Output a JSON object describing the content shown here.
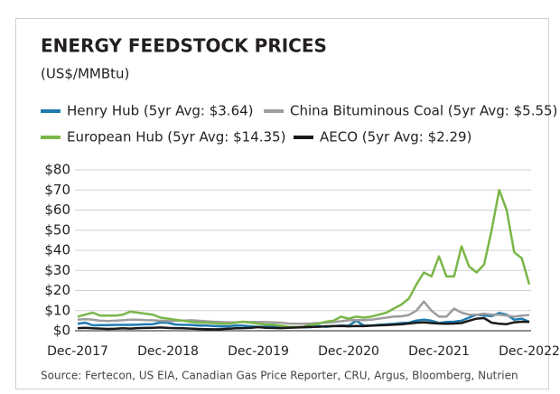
{
  "chart_data": {
    "type": "line",
    "title": "ENERGY FEEDSTOCK PRICES",
    "subtitle": "(US$/MMBtu)",
    "source": "Source: Fertecon, US EIA, Canadian Gas Price Reporter, CRU, Argus, Bloomberg, Nutrien",
    "categories": [
      "Dec-2017",
      null,
      null,
      null,
      null,
      null,
      null,
      null,
      null,
      null,
      null,
      null,
      "Dec-2018",
      null,
      null,
      null,
      null,
      null,
      null,
      null,
      null,
      null,
      null,
      null,
      "Dec-2019",
      null,
      null,
      null,
      null,
      null,
      null,
      null,
      null,
      null,
      null,
      null,
      "Dec-2020",
      null,
      null,
      null,
      null,
      null,
      null,
      null,
      null,
      null,
      null,
      null,
      "Dec-2021",
      null,
      null,
      null,
      null,
      null,
      null,
      null,
      null,
      null,
      null,
      null,
      "Dec-2022"
    ],
    "ylim": [
      0,
      80
    ],
    "yticks": [
      {
        "value": 0,
        "label": "$0"
      },
      {
        "value": 10,
        "label": "$10"
      },
      {
        "value": 20,
        "label": "$20"
      },
      {
        "value": 30,
        "label": "$30"
      },
      {
        "value": 40,
        "label": "$40"
      },
      {
        "value": 50,
        "label": "$50"
      },
      {
        "value": 60,
        "label": "$60"
      },
      {
        "value": 70,
        "label": "$70"
      },
      {
        "value": 80,
        "label": "$80"
      }
    ],
    "grid": true,
    "series": [
      {
        "name": "Henry Hub (5yr Avg: $3.64)",
        "color": "#1f7bb0",
        "values": [
          3.5,
          4,
          2.7,
          2.8,
          2.8,
          2.9,
          2.9,
          2.9,
          3,
          3.2,
          3.3,
          4.1,
          4,
          3.1,
          2.9,
          2.9,
          2.6,
          2.6,
          2.4,
          2.2,
          2.2,
          2.6,
          2.5,
          2.2,
          1.9,
          2,
          1.9,
          1.8,
          1.7,
          1.6,
          1.7,
          1.8,
          2.3,
          2,
          2.4,
          2.6,
          2.5,
          5,
          2.6,
          2.6,
          2.9,
          3.2,
          3.4,
          3.8,
          4,
          5.1,
          5.5,
          5,
          3.8,
          4.4,
          4.5,
          5,
          6.5,
          8,
          7.6,
          7.3,
          8.8,
          8,
          5.5,
          6,
          4.5
        ]
      },
      {
        "name": "China Bituminous Coal (5yr Avg: $5.55)",
        "color": "#9d9d9d",
        "values": [
          5.5,
          5.8,
          5.5,
          5,
          4.8,
          5,
          5.2,
          5.5,
          5.5,
          5.3,
          5.2,
          5,
          4.8,
          5,
          5,
          5.2,
          5,
          4.7,
          4.5,
          4.3,
          4.2,
          4.2,
          4.4,
          4.3,
          4.3,
          4.3,
          4.2,
          4,
          3.6,
          3.5,
          3.5,
          3.6,
          3.8,
          4,
          4.3,
          4.7,
          5.2,
          5.3,
          5.3,
          5.5,
          6,
          6.5,
          7,
          7.2,
          7.8,
          10,
          14.5,
          10,
          7,
          7,
          11,
          9,
          8,
          8,
          8.5,
          8,
          8,
          7.5,
          7,
          7.5,
          7.8
        ]
      },
      {
        "name": "European Hub (5yr Avg: $14.35)",
        "color": "#7ab648",
        "values": [
          7,
          8,
          9,
          7.5,
          7.5,
          7.5,
          8,
          9.5,
          9,
          8.5,
          8,
          6.5,
          6,
          5.5,
          5,
          4.5,
          4,
          4,
          3.8,
          3.5,
          3.5,
          4,
          4.5,
          4,
          3.5,
          3,
          3,
          2.5,
          2,
          1.8,
          2,
          3,
          3.5,
          4.5,
          5,
          7,
          6,
          7,
          6.5,
          7,
          8,
          9,
          11,
          13,
          16,
          23,
          29,
          27,
          37,
          27,
          27,
          42,
          32,
          29,
          33,
          50,
          70,
          60,
          39,
          36,
          23
        ]
      },
      {
        "name": "AECO (5yr Avg: $2.29)",
        "color": "#1a1a1a",
        "values": [
          1.3,
          1.5,
          1.2,
          1.1,
          0.9,
          1,
          1.2,
          1.1,
          1.3,
          1.4,
          1.5,
          1.6,
          1.4,
          1.3,
          1.2,
          1.1,
          0.9,
          0.8,
          0.7,
          0.8,
          1,
          1.2,
          1.3,
          1.5,
          1.8,
          1.5,
          1.4,
          1.3,
          1.5,
          1.6,
          1.8,
          1.9,
          2,
          2.2,
          2.3,
          2.4,
          2.2,
          2.4,
          2.3,
          2.5,
          2.7,
          2.8,
          3,
          3.2,
          3.6,
          4,
          4.2,
          3.8,
          3.6,
          3.5,
          3.6,
          3.8,
          5,
          6,
          6.3,
          4,
          3.5,
          3.3,
          4.2,
          4.5,
          4.4
        ]
      }
    ]
  }
}
